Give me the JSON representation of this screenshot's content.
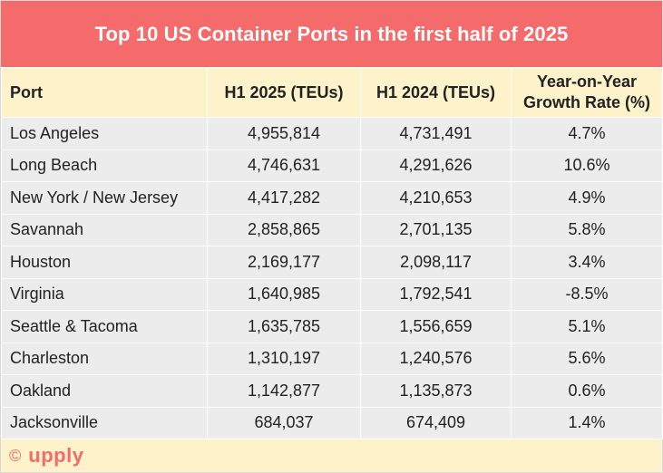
{
  "title": "Top 10 US Container Ports in  the first half of 2025",
  "chart_data": {
    "type": "table",
    "title": "Top 10 US Container Ports in  the first half of 2025",
    "columns": [
      "Port",
      "H1 2025 (TEUs)",
      "H1 2024 (TEUs)",
      "Year-on-Year Growth Rate (%)"
    ],
    "rows": [
      [
        "Los Angeles",
        "4,955,814",
        "4,731,491",
        "4.7%"
      ],
      [
        "Long Beach",
        "4,746,631",
        "4,291,626",
        "10.6%"
      ],
      [
        "New York / New Jersey",
        "4,417,282",
        "4,210,653",
        "4.9%"
      ],
      [
        "Savannah",
        "2,858,865",
        "2,701,135",
        "5.8%"
      ],
      [
        "Houston",
        "2,169,177",
        "2,098,117",
        "3.4%"
      ],
      [
        "Virginia",
        "1,640,985",
        "1,792,541",
        "-8.5%"
      ],
      [
        "Seattle & Tacoma",
        "1,635,785",
        "1,556,659",
        "5.1%"
      ],
      [
        "Charleston",
        "1,310,197",
        "1,240,576",
        "5.6%"
      ],
      [
        "Oakland",
        "1,142,877",
        "1,135,873",
        "0.6%"
      ],
      [
        "Jacksonville",
        "684,037",
        "674,409",
        "1.4%"
      ]
    ]
  },
  "colors": {
    "header_bar": "#f56a6a",
    "header_row": "#fdf2c9",
    "row_bg": "#ececec",
    "brand": "#f56a6a"
  },
  "footer": {
    "copyright_symbol": "©",
    "brand": "upply"
  }
}
